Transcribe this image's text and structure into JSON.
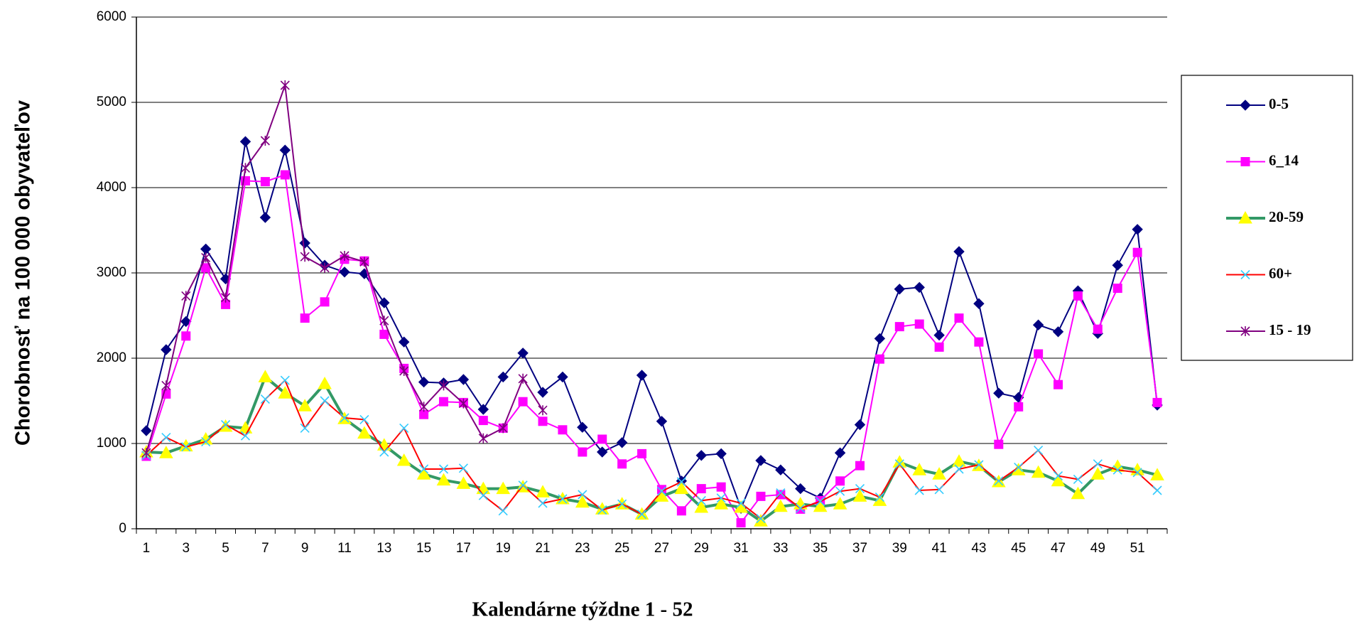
{
  "chart_data": {
    "type": "line",
    "ylabel": "Chorobnosť na 100 000 obyvateľov",
    "xlabel": "Kalendárne týždne 1 - 52",
    "categories": [
      1,
      null,
      3,
      null,
      5,
      null,
      7,
      null,
      9,
      null,
      11,
      null,
      13,
      null,
      15,
      null,
      17,
      null,
      19,
      null,
      21,
      null,
      23,
      null,
      25,
      null,
      27,
      null,
      29,
      null,
      31,
      null,
      33,
      null,
      35,
      null,
      37,
      null,
      39,
      null,
      41,
      null,
      43,
      null,
      45,
      null,
      47,
      null,
      49,
      null,
      51,
      null
    ],
    "ylim": [
      0,
      6000
    ],
    "yticks": [
      0,
      1000,
      2000,
      3000,
      4000,
      5000,
      6000
    ],
    "grid": true,
    "series": [
      {
        "name": "0-5",
        "color": "#000080",
        "marker": "diamond",
        "marker_color": "#000080",
        "values": [
          1150,
          2100,
          2430,
          3280,
          2930,
          4540,
          3650,
          4440,
          3350,
          3090,
          3010,
          2990,
          2650,
          2190,
          1720,
          1710,
          1750,
          1400,
          1780,
          2060,
          1600,
          1780,
          1190,
          900,
          1010,
          1800,
          1260,
          560,
          860,
          880,
          240,
          800,
          690,
          470,
          360,
          890,
          1220,
          2230,
          2810,
          2830,
          2270,
          3250,
          2640,
          1590,
          1540,
          2390,
          2310,
          2790,
          2290,
          3090,
          3510,
          1450
        ]
      },
      {
        "name": "6_14",
        "color": "#ff00ff",
        "marker": "square",
        "marker_color": "#ff00ff",
        "values": [
          850,
          1580,
          2260,
          3060,
          2630,
          4080,
          4070,
          4150,
          2470,
          2660,
          3160,
          3140,
          2280,
          1880,
          1340,
          1490,
          1480,
          1270,
          1180,
          1490,
          1260,
          1160,
          900,
          1050,
          760,
          880,
          460,
          210,
          470,
          490,
          70,
          380,
          400,
          230,
          330,
          560,
          740,
          1990,
          2370,
          2400,
          2130,
          2470,
          2190,
          990,
          1430,
          2050,
          1690,
          2730,
          2340,
          2820,
          3240,
          1480
        ]
      },
      {
        "name": "20-59",
        "color": "#339966",
        "marker": "triangle",
        "marker_color": "#ffff00",
        "values": [
          900,
          890,
          970,
          1050,
          1200,
          1180,
          1780,
          1590,
          1440,
          1700,
          1290,
          1120,
          980,
          800,
          640,
          570,
          530,
          470,
          470,
          490,
          430,
          350,
          310,
          230,
          290,
          170,
          380,
          470,
          250,
          290,
          250,
          90,
          260,
          290,
          260,
          290,
          380,
          330,
          780,
          690,
          640,
          790,
          740,
          550,
          690,
          660,
          560,
          410,
          640,
          730,
          690,
          630
        ]
      },
      {
        "name": "60+",
        "color": "#ff0000",
        "marker": "x",
        "marker_color": "#33ccff",
        "values": [
          860,
          1070,
          960,
          1020,
          1220,
          1090,
          1520,
          1740,
          1180,
          1500,
          1300,
          1280,
          900,
          1180,
          700,
          700,
          710,
          390,
          210,
          510,
          300,
          350,
          400,
          220,
          290,
          170,
          440,
          550,
          330,
          360,
          300,
          120,
          420,
          240,
          320,
          440,
          470,
          370,
          760,
          450,
          460,
          700,
          750,
          560,
          720,
          920,
          620,
          580,
          760,
          690,
          660,
          450
        ]
      },
      {
        "name": "15 - 19",
        "color": "#800080",
        "marker": "asterisk",
        "marker_color": "#800080",
        "values": [
          890,
          1680,
          2730,
          3180,
          2710,
          4230,
          4550,
          5200,
          3190,
          3060,
          3200,
          3130,
          2440,
          1850,
          1430,
          1680,
          1470,
          1060,
          1180,
          1760,
          1390,
          null,
          null,
          null,
          null,
          null,
          null,
          null,
          null,
          null,
          null,
          null,
          null,
          null,
          null,
          null,
          null,
          null,
          null,
          null,
          null,
          null,
          null,
          null,
          null,
          null,
          null,
          null,
          null,
          null,
          null,
          null
        ]
      }
    ]
  }
}
